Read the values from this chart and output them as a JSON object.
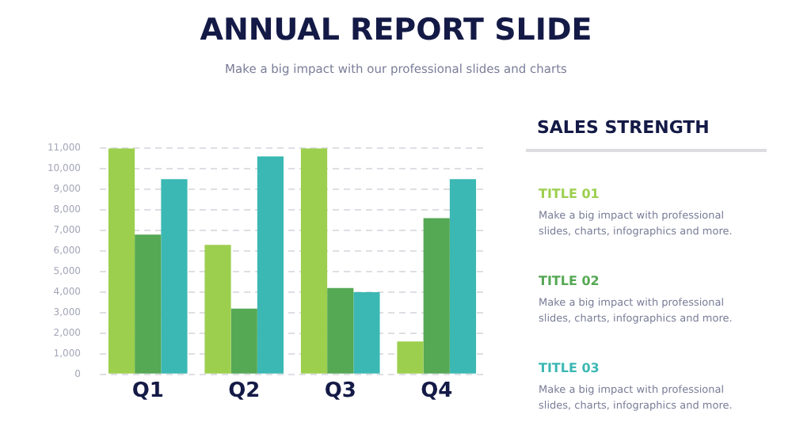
{
  "chart_data": {
    "type": "bar",
    "title": "ANNUAL REPORT SLIDE",
    "subtitle": "Make a big impact with our professional slides and charts",
    "legend_title": "SALES STRENGTH",
    "categories": [
      "Q1",
      "Q2",
      "Q3",
      "Q4"
    ],
    "series": [
      {
        "name": "TITLE 01",
        "color": "#9ccf4e",
        "values": [
          11000,
          6300,
          11000,
          1600
        ]
      },
      {
        "name": "TITLE 02",
        "color": "#55a854",
        "values": [
          6800,
          3200,
          4200,
          7600
        ]
      },
      {
        "name": "TITLE 03",
        "color": "#3bb8b4",
        "values": [
          9500,
          10600,
          4000,
          9500
        ]
      }
    ],
    "annotations": [
      "Make a big impact with professional slides, charts, infographics and more.",
      "Make a big impact with professional slides, charts, infographics and more.",
      "Make a big impact with professional slides, charts, infographics and more."
    ],
    "ylim": [
      0,
      11000
    ],
    "yticks": [
      0,
      {
        "value": 1000,
        "label": "1,000"
      },
      {
        "value": 2000,
        "label": "2,000"
      },
      {
        "value": 3000,
        "label": "3,000"
      },
      {
        "value": 4000,
        "label": "4,000"
      },
      {
        "value": 5000,
        "label": "5,000"
      },
      {
        "value": 6000,
        "label": "6,000"
      },
      {
        "value": 7000,
        "label": "7,000"
      },
      {
        "value": 8000,
        "label": "8,000"
      },
      {
        "value": 9000,
        "label": "9,000"
      },
      {
        "value": 10000,
        "label": "10,000"
      },
      {
        "value": 11000,
        "label": "11,000"
      }
    ],
    "grid": "y",
    "legend": "right"
  }
}
